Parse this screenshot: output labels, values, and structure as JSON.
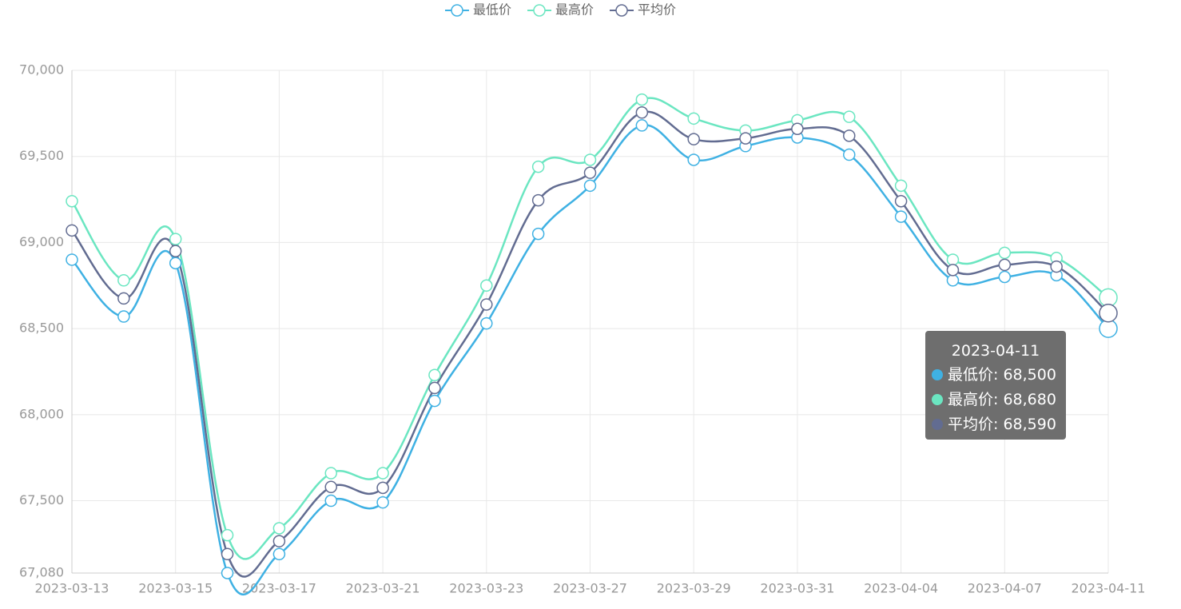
{
  "chart_data": {
    "type": "line",
    "categories": [
      "2023-03-13",
      null,
      "2023-03-15",
      null,
      "2023-03-17",
      null,
      "2023-03-21",
      null,
      "2023-03-23",
      null,
      "2023-03-27",
      null,
      "2023-03-29",
      null,
      "2023-03-31",
      null,
      "2023-04-04",
      null,
      "2023-04-07",
      null,
      "2023-04-11"
    ],
    "series": [
      {
        "name": "最低价",
        "color": "#3fb1e3",
        "values": [
          68900,
          68570,
          68880,
          67080,
          67190,
          67500,
          67490,
          68080,
          68530,
          69050,
          69330,
          69680,
          69480,
          69560,
          69610,
          69510,
          69150,
          68780,
          68800,
          68810,
          68500
        ]
      },
      {
        "name": "最高价",
        "color": "#6be6c1",
        "values": [
          69240,
          68780,
          69020,
          67300,
          67340,
          67660,
          67660,
          68230,
          68750,
          69440,
          69480,
          69830,
          69720,
          69650,
          69710,
          69730,
          69330,
          68900,
          68940,
          68910,
          68680
        ]
      },
      {
        "name": "平均价",
        "color": "#626c91",
        "values": [
          69070,
          68675,
          68950,
          67190,
          67265,
          67580,
          67575,
          68155,
          68640,
          69245,
          69405,
          69755,
          69600,
          69605,
          69660,
          69620,
          69240,
          68840,
          68870,
          68860,
          68590
        ]
      }
    ],
    "ylim": [
      67080,
      70000
    ],
    "yticks": [
      {
        "value": 67080,
        "label": "67,080"
      },
      {
        "value": 67500,
        "label": "67,500"
      },
      {
        "value": 68000,
        "label": "68,000"
      },
      {
        "value": 68500,
        "label": "68,500"
      },
      {
        "value": 69000,
        "label": "69,000"
      },
      {
        "value": 69500,
        "label": "69,500"
      },
      {
        "value": 70000,
        "label": "70,000"
      }
    ],
    "grid": true,
    "legend": "top",
    "tooltip": {
      "title": "2023-04-11",
      "lines": [
        "最低价: 68,500",
        "最高价: 68,680",
        "平均价: 68,590"
      ]
    }
  }
}
